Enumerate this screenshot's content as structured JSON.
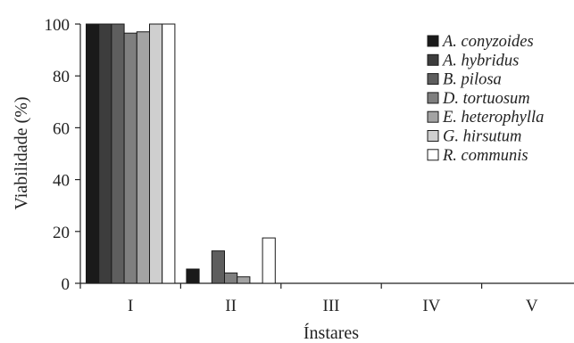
{
  "chart_data": {
    "type": "bar",
    "title": "",
    "xlabel": "Ínstares",
    "ylabel": "Viabilidade (%)",
    "ylim": [
      0,
      100
    ],
    "yticks": [
      0,
      20,
      40,
      60,
      80,
      100
    ],
    "categories": [
      "I",
      "II",
      "III",
      "IV",
      "V"
    ],
    "grid": false,
    "legend_position": "top-right",
    "series": [
      {
        "name": "A. conyzoides",
        "color": "#1a1a1a",
        "values": [
          100,
          5.5,
          0,
          0,
          0
        ]
      },
      {
        "name": "A. hybridus",
        "color": "#3d3d3d",
        "values": [
          100,
          0,
          0,
          0,
          0
        ]
      },
      {
        "name": "B. pilosa",
        "color": "#5e5e5e",
        "values": [
          100,
          12.5,
          0,
          0,
          0
        ]
      },
      {
        "name": "D. tortuosum",
        "color": "#7f7f7f",
        "values": [
          96.5,
          4,
          0,
          0,
          0
        ]
      },
      {
        "name": "E. heterophylla",
        "color": "#a3a3a3",
        "values": [
          97,
          2.5,
          0,
          0,
          0
        ]
      },
      {
        "name": "G. hirsutum",
        "color": "#cfcfcf",
        "values": [
          100,
          0,
          0,
          0,
          0
        ]
      },
      {
        "name": "R. communis",
        "color": "#ffffff",
        "values": [
          100,
          17.5,
          0,
          0,
          0
        ]
      }
    ]
  }
}
